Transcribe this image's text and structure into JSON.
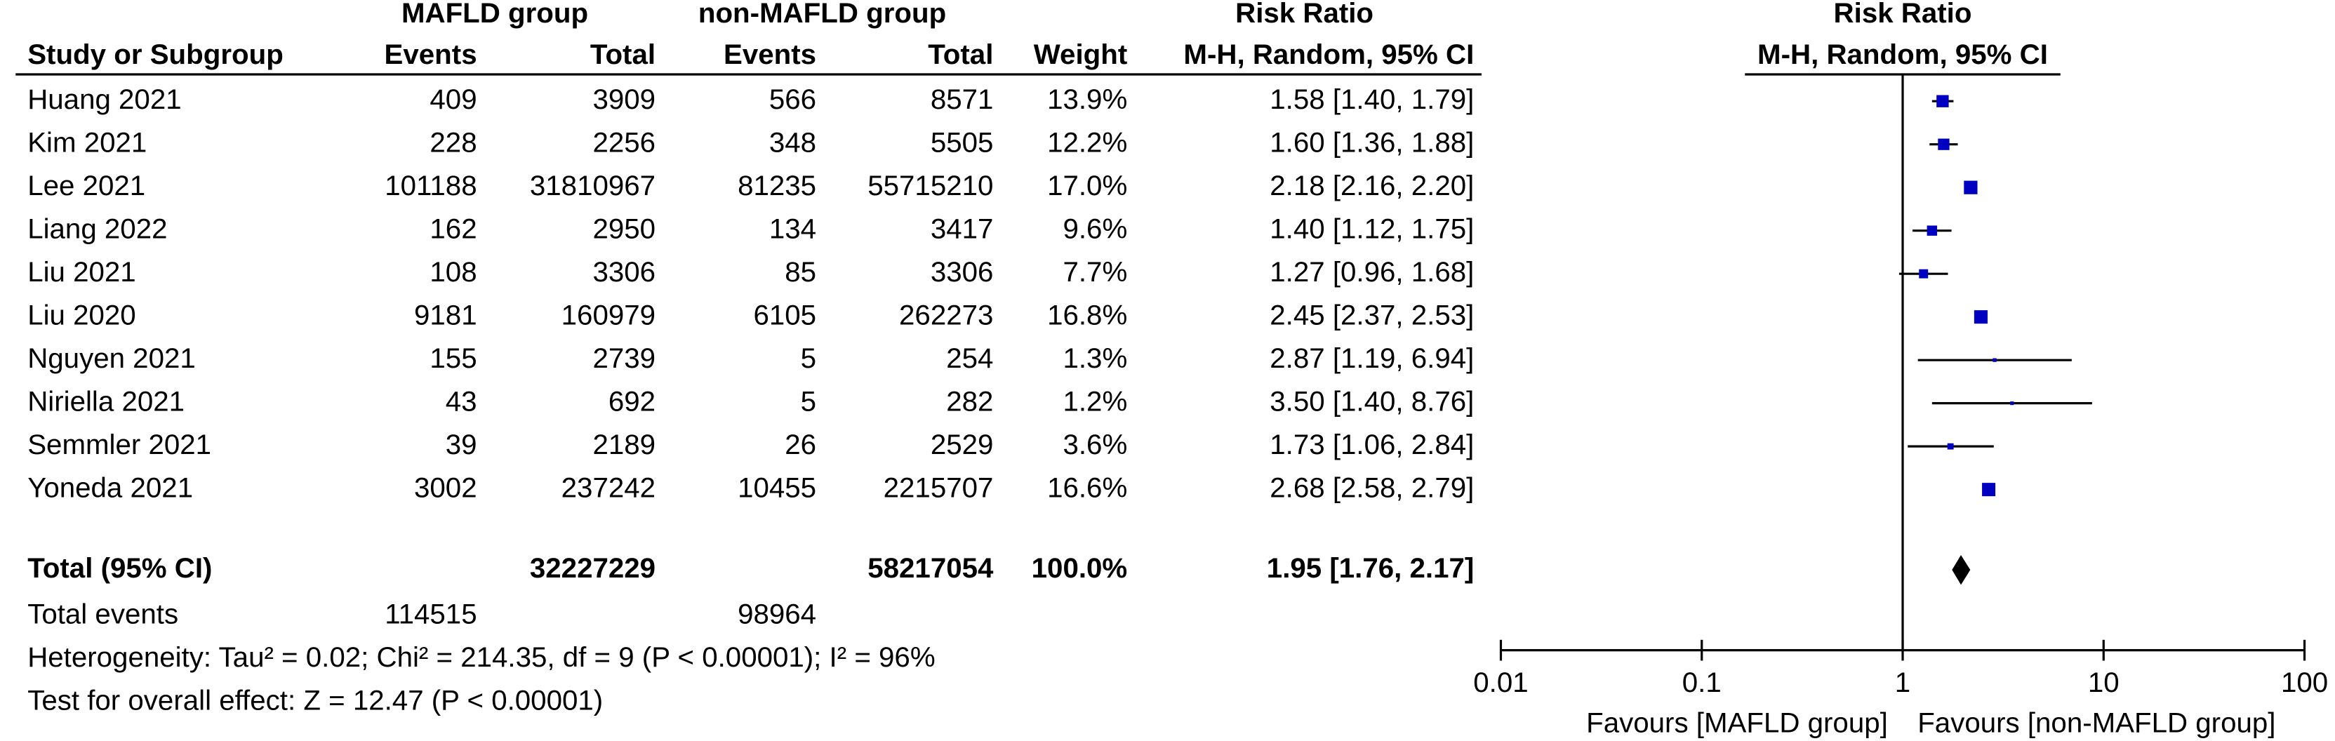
{
  "chart_data": {
    "type": "forest",
    "group_headers": [
      "MAFLD group",
      "non-MAFLD group",
      "Risk Ratio",
      "Risk Ratio"
    ],
    "columns": [
      "Study or Subgroup",
      "Events",
      "Total",
      "Events",
      "Total",
      "Weight",
      "M-H, Random, 95% CI",
      "M-H, Random, 95% CI"
    ],
    "studies": [
      {
        "name": "Huang 2021",
        "events1": 409,
        "total1": 3909,
        "events2": 566,
        "total2": 8571,
        "weight": 13.9,
        "weight_label": "13.9%",
        "estimate": 1.58,
        "ci": [
          1.4,
          1.79
        ],
        "estimate_label": "1.58 [1.40, 1.79]"
      },
      {
        "name": "Kim 2021",
        "events1": 228,
        "total1": 2256,
        "events2": 348,
        "total2": 5505,
        "weight": 12.2,
        "weight_label": "12.2%",
        "estimate": 1.6,
        "ci": [
          1.36,
          1.88
        ],
        "estimate_label": "1.60 [1.36, 1.88]"
      },
      {
        "name": "Lee 2021",
        "events1": 101188,
        "total1": 31810967,
        "events2": 81235,
        "total2": 55715210,
        "weight": 17.0,
        "weight_label": "17.0%",
        "estimate": 2.18,
        "ci": [
          2.16,
          2.2
        ],
        "estimate_label": "2.18 [2.16, 2.20]"
      },
      {
        "name": "Liang 2022",
        "events1": 162,
        "total1": 2950,
        "events2": 134,
        "total2": 3417,
        "weight": 9.6,
        "weight_label": "9.6%",
        "estimate": 1.4,
        "ci": [
          1.12,
          1.75
        ],
        "estimate_label": "1.40 [1.12, 1.75]"
      },
      {
        "name": "Liu 2021",
        "events1": 108,
        "total1": 3306,
        "events2": 85,
        "total2": 3306,
        "weight": 7.7,
        "weight_label": "7.7%",
        "estimate": 1.27,
        "ci": [
          0.96,
          1.68
        ],
        "estimate_label": "1.27 [0.96, 1.68]"
      },
      {
        "name": "Liu 2020",
        "events1": 9181,
        "total1": 160979,
        "events2": 6105,
        "total2": 262273,
        "weight": 16.8,
        "weight_label": "16.8%",
        "estimate": 2.45,
        "ci": [
          2.37,
          2.53
        ],
        "estimate_label": "2.45 [2.37, 2.53]"
      },
      {
        "name": "Nguyen 2021",
        "events1": 155,
        "total1": 2739,
        "events2": 5,
        "total2": 254,
        "weight": 1.3,
        "weight_label": "1.3%",
        "estimate": 2.87,
        "ci": [
          1.19,
          6.94
        ],
        "estimate_label": "2.87 [1.19, 6.94]"
      },
      {
        "name": "Niriella 2021",
        "events1": 43,
        "total1": 692,
        "events2": 5,
        "total2": 282,
        "weight": 1.2,
        "weight_label": "1.2%",
        "estimate": 3.5,
        "ci": [
          1.4,
          8.76
        ],
        "estimate_label": "3.50 [1.40, 8.76]"
      },
      {
        "name": "Semmler 2021",
        "events1": 39,
        "total1": 2189,
        "events2": 26,
        "total2": 2529,
        "weight": 3.6,
        "weight_label": "3.6%",
        "estimate": 1.73,
        "ci": [
          1.06,
          2.84
        ],
        "estimate_label": "1.73 [1.06, 2.84]"
      },
      {
        "name": "Yoneda 2021",
        "events1": 3002,
        "total1": 237242,
        "events2": 10455,
        "total2": 2215707,
        "weight": 16.6,
        "weight_label": "16.6%",
        "estimate": 2.68,
        "ci": [
          2.58,
          2.79
        ],
        "estimate_label": "2.68 [2.58, 2.79]"
      }
    ],
    "total": {
      "name": "Total (95% CI)",
      "total1": 32227229,
      "total2": 58217054,
      "weight": 100.0,
      "weight_label": "100.0%",
      "estimate": 1.95,
      "ci": [
        1.76,
        2.17
      ],
      "estimate_label": "1.95 [1.76, 2.17]"
    },
    "total_events": {
      "name": "Total events",
      "events1": 114515,
      "events2": 98964
    },
    "heterogeneity": "Heterogeneity: Tau² = 0.02; Chi² = 214.35, df = 9 (P < 0.00001); I² = 96%",
    "overall_effect": "Test for overall effect: Z = 12.47 (P < 0.00001)",
    "xscale": "log",
    "xlim": [
      0.01,
      100
    ],
    "xticks": [
      0.01,
      0.1,
      1,
      10,
      100
    ],
    "reference_line": 1,
    "favours": [
      "Favours [MAFLD group]",
      "Favours [non-MAFLD group]"
    ],
    "marker_color": "#0000c0",
    "diamond_color": "#000000"
  }
}
